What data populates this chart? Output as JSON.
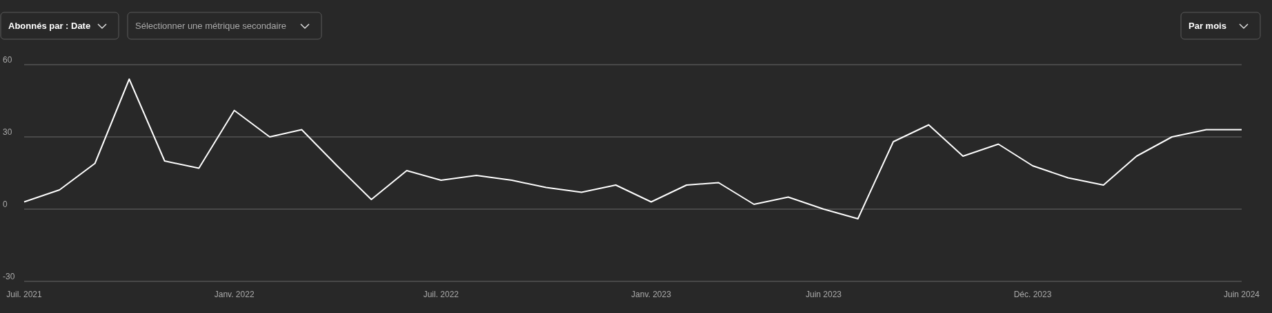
{
  "chart_data": {
    "type": "line",
    "x": [
      "2021-07",
      "2021-08",
      "2021-09",
      "2021-10",
      "2021-11",
      "2021-12",
      "2022-01",
      "2022-02",
      "2022-03",
      "2022-04",
      "2022-05",
      "2022-06",
      "2022-07",
      "2022-08",
      "2022-09",
      "2022-10",
      "2022-11",
      "2022-12",
      "2023-01",
      "2023-02",
      "2023-03",
      "2023-04",
      "2023-05",
      "2023-06",
      "2023-07",
      "2023-08",
      "2023-09",
      "2023-10",
      "2023-11",
      "2023-12",
      "2024-01",
      "2024-02",
      "2024-03",
      "2024-04",
      "2024-05",
      "2024-06"
    ],
    "series": [
      {
        "color": "#ffffff",
        "values": [
          3,
          8,
          19,
          54,
          20,
          17,
          41,
          30,
          33,
          18,
          4,
          16,
          12,
          14,
          12,
          9,
          7,
          10,
          3,
          10,
          11,
          2,
          5,
          0,
          -4,
          28,
          35,
          22,
          27,
          18,
          13,
          10,
          22,
          30,
          33,
          33
        ]
      }
    ],
    "xlim": [
      "2021-07",
      "2024-06"
    ],
    "xticks": [
      {
        "value": "2021-07",
        "label": "Juil. 2021"
      },
      {
        "value": "2022-01",
        "label": "Janv. 2022"
      },
      {
        "value": "2022-07",
        "label": "Juil. 2022"
      },
      {
        "value": "2023-01",
        "label": "Janv. 2023"
      },
      {
        "value": "2023-06",
        "label": "Juin 2023"
      },
      {
        "value": "2023-12",
        "label": "Déc. 2023"
      },
      {
        "value": "2024-06",
        "label": "Juin 2024"
      }
    ],
    "ylim": [
      -30,
      60
    ],
    "yticks": [
      -30,
      0,
      30,
      60
    ],
    "grid": "y",
    "marker": "none",
    "line_style": "solid",
    "annotations": [
      "Abonnés par : Date",
      "Sélectionner une métrique secondaire",
      "Par mois"
    ]
  }
}
